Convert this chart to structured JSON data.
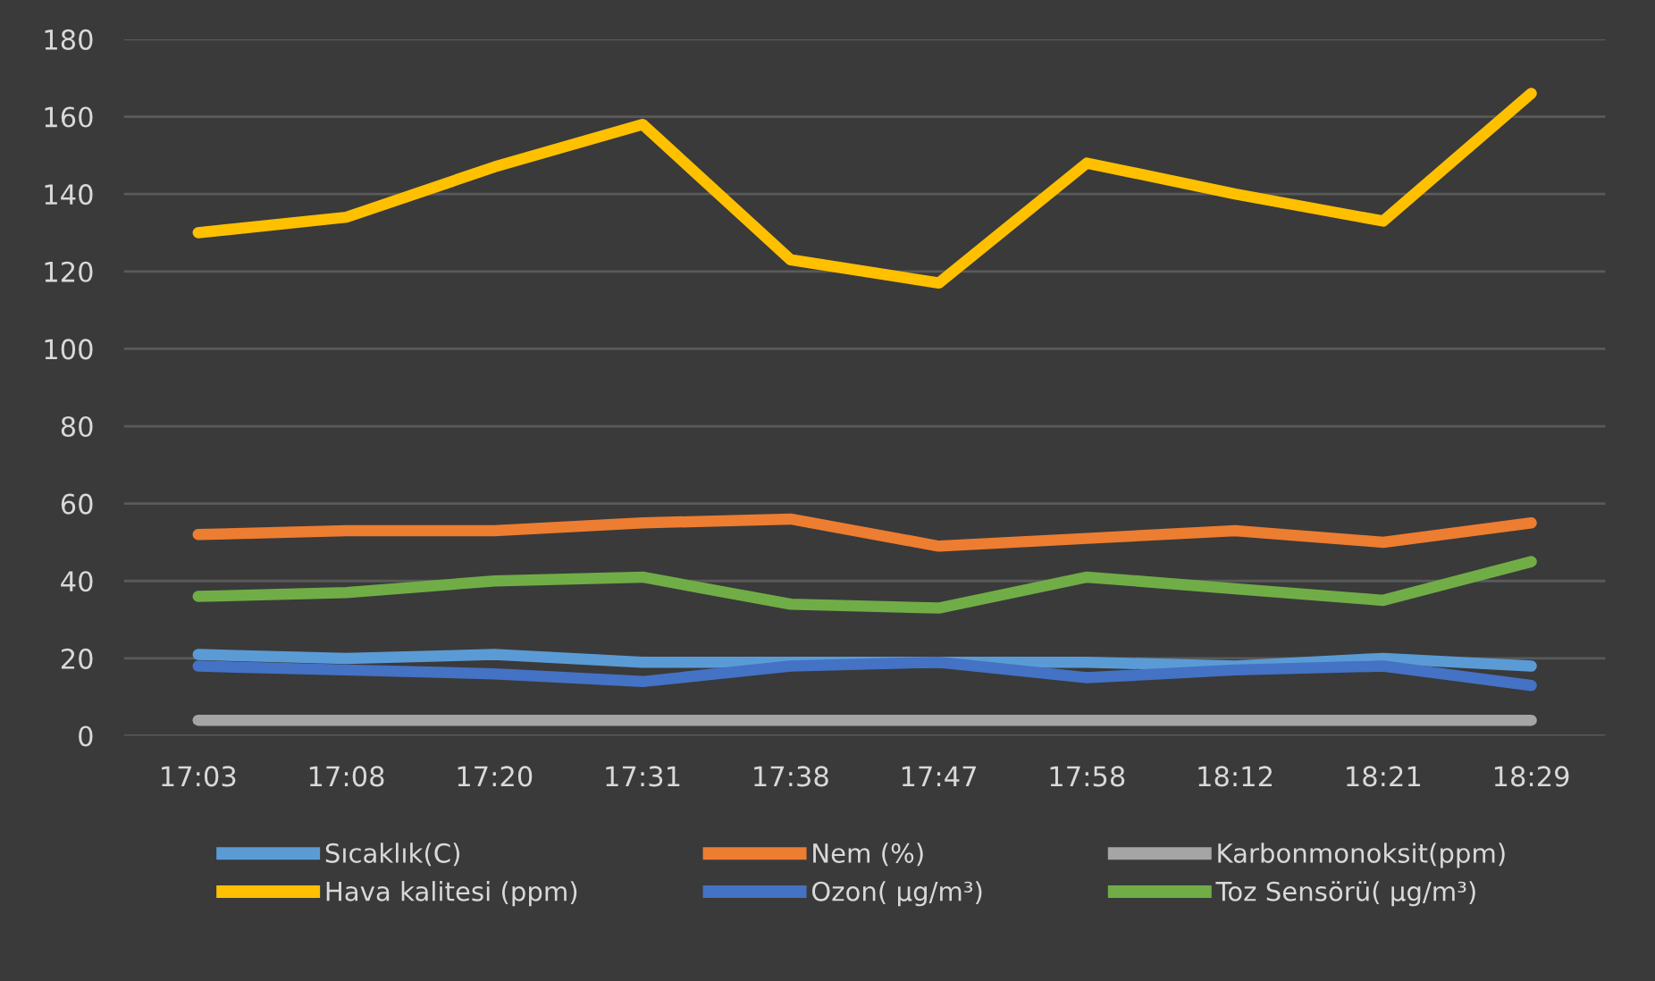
{
  "chart_data": {
    "type": "line",
    "categories": [
      "17:03",
      "17:08",
      "17:20",
      "17:31",
      "17:38",
      "17:47",
      "17:58",
      "18:12",
      "18:21",
      "18:29"
    ],
    "series": [
      {
        "name": "Sıcaklık(C)",
        "color": "#5b9bd5",
        "values": [
          21,
          20,
          21,
          19,
          19,
          19,
          19,
          18,
          20,
          18
        ]
      },
      {
        "name": "Nem (%)",
        "color": "#ed7d31",
        "values": [
          52,
          53,
          53,
          55,
          56,
          49,
          51,
          53,
          50,
          55
        ]
      },
      {
        "name": "Karbonmonoksit(ppm)",
        "color": "#a5a5a5",
        "values": [
          4,
          4,
          4,
          4,
          4,
          4,
          4,
          4,
          4,
          4
        ]
      },
      {
        "name": "Hava kalitesi (ppm)",
        "color": "#ffc000",
        "values": [
          130,
          134,
          147,
          158,
          123,
          117,
          148,
          140,
          133,
          166
        ]
      },
      {
        "name": "Ozon( µg/m³)",
        "color": "#4472c4",
        "values": [
          18,
          17,
          16,
          14,
          18,
          19,
          15,
          17,
          18,
          13
        ]
      },
      {
        "name": "Toz Sensörü( µg/m³)",
        "color": "#70ad47",
        "values": [
          36,
          37,
          40,
          41,
          34,
          33,
          41,
          38,
          35,
          45
        ]
      }
    ],
    "ylim": [
      0,
      180
    ],
    "yticks": [
      0,
      20,
      40,
      60,
      80,
      100,
      120,
      140,
      160,
      180
    ],
    "grid": "y",
    "legend": "bottom",
    "marker": "none",
    "line_style": "solid"
  }
}
